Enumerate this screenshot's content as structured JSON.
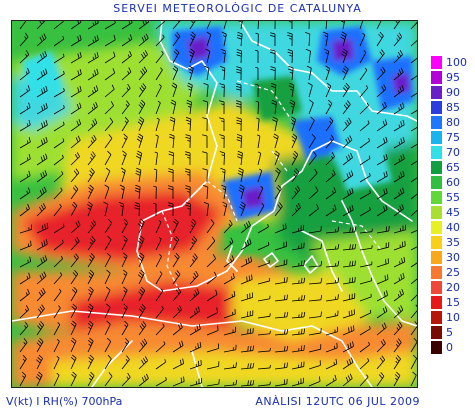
{
  "header": {
    "title": "SERVEI METEOROLÒGIC DE CATALUNYA"
  },
  "footer": {
    "left_label": "V(kt) I RH(%) 700hPa",
    "right_label": "ANÀLISI 12UTC 06 JUL 2009"
  },
  "legend": {
    "items": [
      {
        "label": "100",
        "color": "#ff00ff"
      },
      {
        "label": "95",
        "color": "#b400d8"
      },
      {
        "label": "90",
        "color": "#6a1fc8"
      },
      {
        "label": "85",
        "color": "#2a3ee0"
      },
      {
        "label": "80",
        "color": "#1e78ff"
      },
      {
        "label": "75",
        "color": "#18b4f0"
      },
      {
        "label": "70",
        "color": "#30e0e8"
      },
      {
        "label": "65",
        "color": "#10a040"
      },
      {
        "label": "60",
        "color": "#30c040"
      },
      {
        "label": "55",
        "color": "#60d838"
      },
      {
        "label": "45",
        "color": "#a8e030"
      },
      {
        "label": "40",
        "color": "#e8f020"
      },
      {
        "label": "35",
        "color": "#f8d018"
      },
      {
        "label": "30",
        "color": "#f8a818"
      },
      {
        "label": "25",
        "color": "#f87830"
      },
      {
        "label": "20",
        "color": "#f04838"
      },
      {
        "label": "15",
        "color": "#e81818"
      },
      {
        "label": "10",
        "color": "#b81408"
      },
      {
        "label": "5",
        "color": "#7a0a04"
      },
      {
        "label": "0",
        "color": "#3a0000"
      }
    ]
  },
  "map": {
    "palette": {
      "dry_red": "#e8202a",
      "orange": "#f88a30",
      "yellow": "#f0d820",
      "lime": "#9ee030",
      "green": "#38c040",
      "dark_green": "#12a040",
      "cyan": "#40d8e0",
      "blue": "#1e70ff",
      "purple": "#6a1fc8",
      "coastline": "#ffffff",
      "barb": "#000000"
    }
  }
}
